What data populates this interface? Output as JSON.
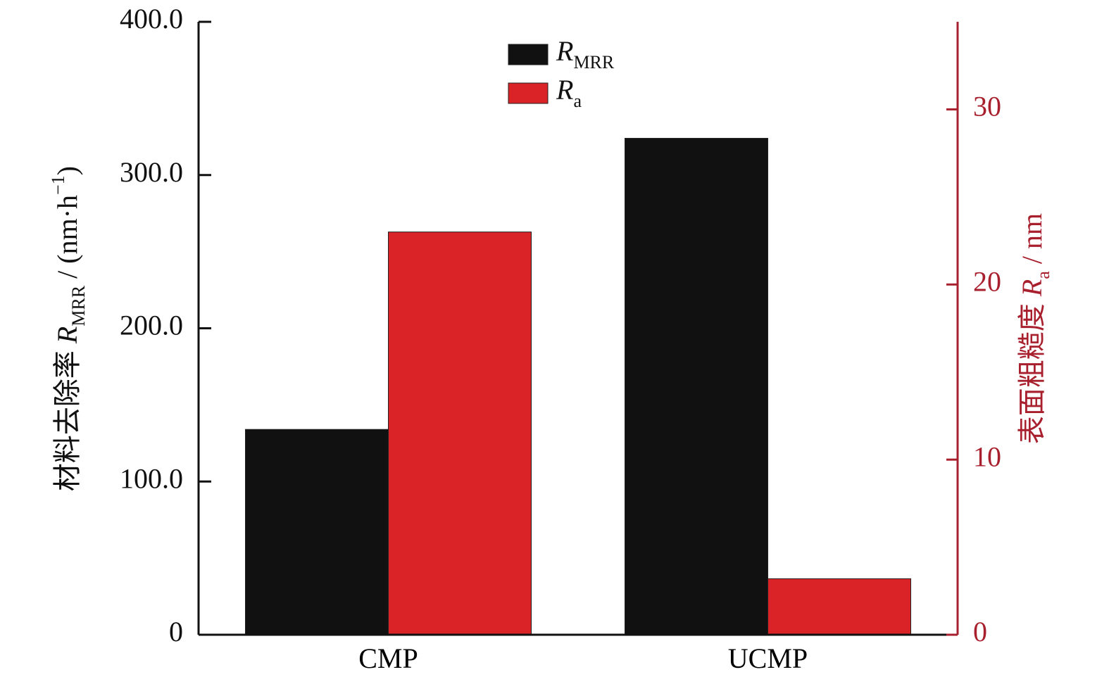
{
  "chart_data": {
    "type": "bar",
    "categories": [
      "CMP",
      "UCMP"
    ],
    "series": [
      {
        "name": [
          {
            "text": "R",
            "style": "italic"
          },
          {
            "text": "MRR",
            "style": "sub"
          }
        ],
        "color": "#111111",
        "values": [
          134,
          324
        ]
      },
      {
        "name": [
          {
            "text": "R",
            "style": "italic"
          },
          {
            "text": "a",
            "style": "sub"
          }
        ],
        "color": "#d92326",
        "axis": "y2",
        "values": [
          23.0,
          3.2
        ]
      }
    ],
    "y_label": [
      {
        "text": "材料去除率 "
      },
      {
        "text": "R",
        "style": "italic"
      },
      {
        "text": "MRR",
        "style": "sub"
      },
      {
        "text": " / (nm·h"
      },
      {
        "text": "−1",
        "style": "super"
      },
      {
        "text": ")"
      }
    ],
    "y2_label": [
      {
        "text": "表面粗糙度 "
      },
      {
        "text": "R",
        "style": "italic"
      },
      {
        "text": "a",
        "style": "sub"
      },
      {
        "text": " / nm"
      }
    ],
    "ylim": [
      0,
      400
    ],
    "yticks": [
      0,
      {
        "value": 100,
        "label": "100.0"
      },
      {
        "value": 200,
        "label": "200.0"
      },
      {
        "value": 300,
        "label": "300.0"
      },
      {
        "value": 400,
        "label": "400.0"
      }
    ],
    "y2lim": [
      0,
      35
    ],
    "y2ticks": [
      0,
      10,
      20,
      30
    ],
    "y2_color": "#a8202e",
    "legend": "top"
  }
}
